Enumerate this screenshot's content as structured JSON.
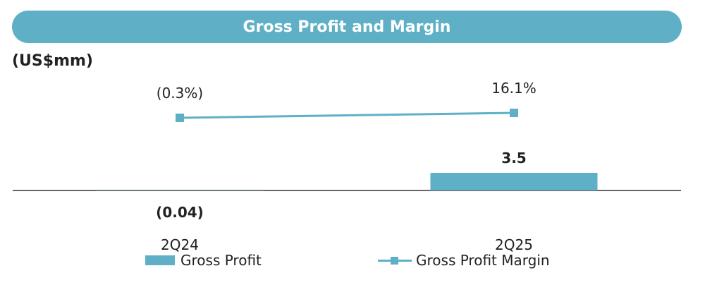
{
  "header": {
    "title": "Gross Profit and Margin",
    "unit": "(US$mm)"
  },
  "colors": {
    "accent": "#5fb0c7",
    "text": "#222222",
    "axis": "#333333"
  },
  "chart_data": {
    "type": "bar",
    "title": "Gross Profit and Margin",
    "ylabel": "(US$mm)",
    "categories": [
      "2Q24",
      "2Q25"
    ],
    "series": [
      {
        "name": "Gross Profit",
        "kind": "bar",
        "values": [
          -0.04,
          3.5
        ],
        "labels": [
          "(0.04)",
          "3.5"
        ]
      },
      {
        "name": "Gross Profit Margin",
        "kind": "line",
        "values": [
          -0.3,
          16.1
        ],
        "labels": [
          "(0.3%)",
          "16.1%"
        ]
      }
    ],
    "legend": [
      "Gross Profit",
      "Gross Profit Margin"
    ],
    "legend_position": "bottom",
    "grid": false
  }
}
